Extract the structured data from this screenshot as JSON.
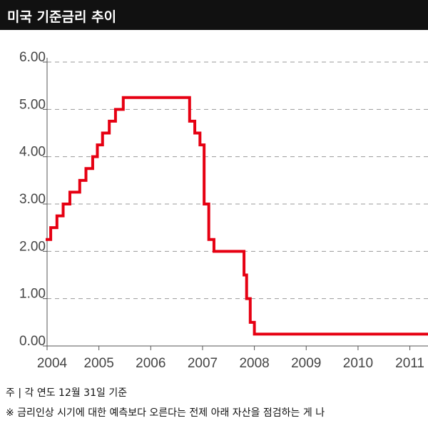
{
  "header": {
    "title": "미국 기준금리 추이"
  },
  "footnotes": {
    "note": "주 | 각 연도 12월 31일 기준",
    "remark": "※ 금리인상 시기에 대한 예측보다 오른다는 전제 아래 자산을 점검하는 게 나"
  },
  "chart_data": {
    "type": "line",
    "title": "미국 기준금리 추이",
    "xlabel": "",
    "ylabel": "",
    "xlim": [
      2004,
      2011.35
    ],
    "ylim": [
      0,
      6
    ],
    "yticks": [
      0,
      1,
      2,
      3,
      4,
      5,
      6
    ],
    "ytick_labels": [
      "0.00",
      "1.00",
      "2.00",
      "3.00",
      "4.00",
      "5.00",
      "6.00"
    ],
    "xticks": [
      2004,
      2005,
      2006,
      2007,
      2008,
      2009,
      2010,
      2011
    ],
    "xtick_labels": [
      "2004",
      "2005",
      "2006",
      "2007",
      "2008",
      "2009",
      "2010",
      "2011"
    ],
    "grid": "horizontal-dashed",
    "line_color": "#e60012",
    "series": [
      {
        "name": "",
        "step": true,
        "x": [
          2004.0,
          2004.07,
          2004.19,
          2004.31,
          2004.44,
          2004.63,
          2004.75,
          2004.88,
          2004.97,
          2005.07,
          2005.2,
          2005.32,
          2005.47,
          2005.66,
          2006.75,
          2006.85,
          2006.95,
          2007.03,
          2007.12,
          2007.22,
          2007.31,
          2007.8,
          2007.85,
          2007.92,
          2008.0,
          2011.35
        ],
        "y": [
          2.25,
          2.5,
          2.75,
          3.0,
          3.25,
          3.5,
          3.75,
          4.0,
          4.25,
          4.5,
          4.75,
          5.0,
          5.25,
          5.25,
          4.75,
          4.5,
          4.25,
          3.0,
          2.25,
          2.0,
          2.0,
          1.5,
          1.0,
          0.5,
          0.25,
          0.25
        ]
      }
    ]
  }
}
